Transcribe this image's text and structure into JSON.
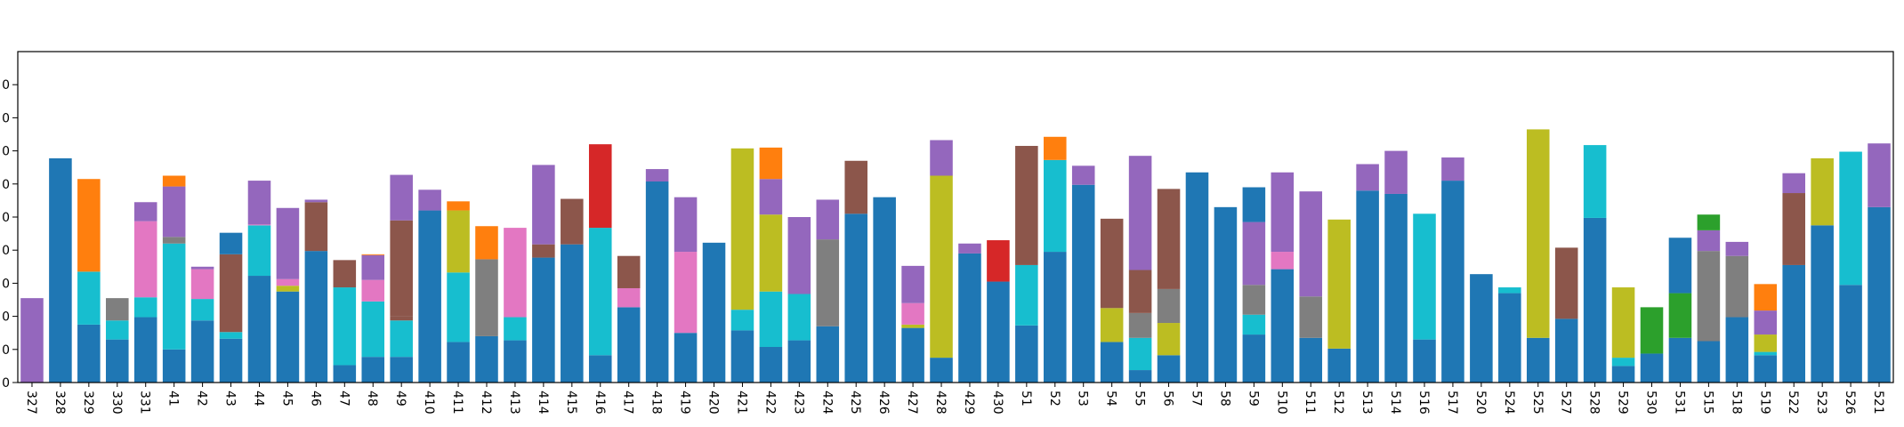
{
  "chart_data": {
    "type": "bar",
    "stacked": true,
    "ylim": [
      0,
      40
    ],
    "ytick_labels": [
      "0",
      "0",
      "0",
      "0",
      "0",
      "0",
      "0",
      "0",
      "0",
      "0"
    ],
    "ytick_values": [
      0,
      4,
      8,
      12,
      16,
      20,
      24,
      28,
      32,
      36
    ],
    "colors": {
      "blue": "#1f77b4",
      "orange": "#ff7f0e",
      "green": "#2ca02c",
      "red": "#d62728",
      "purple": "#9467bd",
      "brown": "#8c564b",
      "pink": "#e377c2",
      "gray": "#7f7f7f",
      "olive": "#bcbd22",
      "cyan": "#17becf"
    },
    "bars": [
      {
        "label": "327",
        "segments": [
          [
            "purple",
            10.2
          ]
        ]
      },
      {
        "label": "328",
        "segments": [
          [
            "blue",
            27.1
          ]
        ]
      },
      {
        "label": "329",
        "segments": [
          [
            "blue",
            7.0
          ],
          [
            "cyan",
            6.4
          ],
          [
            "orange",
            11.2
          ]
        ]
      },
      {
        "label": "330",
        "segments": [
          [
            "blue",
            5.2
          ],
          [
            "cyan",
            2.3
          ],
          [
            "gray",
            2.7
          ]
        ]
      },
      {
        "label": "331",
        "segments": [
          [
            "blue",
            7.9
          ],
          [
            "cyan",
            2.4
          ],
          [
            "pink",
            9.2
          ],
          [
            "purple",
            2.3
          ]
        ]
      },
      {
        "label": "41",
        "segments": [
          [
            "blue",
            4.0
          ],
          [
            "cyan",
            12.8
          ],
          [
            "gray",
            0.8
          ],
          [
            "purple",
            6.1
          ],
          [
            "orange",
            1.3
          ]
        ]
      },
      {
        "label": "42",
        "segments": [
          [
            "blue",
            7.5
          ],
          [
            "cyan",
            2.6
          ],
          [
            "pink",
            3.6
          ],
          [
            "purple",
            0.3
          ]
        ]
      },
      {
        "label": "43",
        "segments": [
          [
            "blue",
            5.3
          ],
          [
            "cyan",
            0.8
          ],
          [
            "brown",
            9.4
          ],
          [
            "blue",
            2.6
          ]
        ]
      },
      {
        "label": "44",
        "segments": [
          [
            "blue",
            12.9
          ],
          [
            "cyan",
            6.1
          ],
          [
            "pink",
            0.1
          ],
          [
            "purple",
            5.3
          ]
        ]
      },
      {
        "label": "45",
        "segments": [
          [
            "blue",
            11.0
          ],
          [
            "olive",
            0.7
          ],
          [
            "pink",
            0.8
          ],
          [
            "purple",
            8.6
          ]
        ]
      },
      {
        "label": "46",
        "segments": [
          [
            "blue",
            15.9
          ],
          [
            "brown",
            5.9
          ],
          [
            "purple",
            0.3
          ]
        ]
      },
      {
        "label": "47",
        "segments": [
          [
            "blue",
            2.1
          ],
          [
            "cyan",
            9.4
          ],
          [
            "brown",
            3.3
          ]
        ]
      },
      {
        "label": "48",
        "segments": [
          [
            "blue",
            3.1
          ],
          [
            "cyan",
            6.7
          ],
          [
            "pink",
            2.6
          ],
          [
            "purple",
            3.0
          ],
          [
            "orange",
            0.1
          ]
        ]
      },
      {
        "label": "49",
        "segments": [
          [
            "blue",
            3.1
          ],
          [
            "cyan",
            4.4
          ],
          [
            "brown",
            0.5
          ],
          [
            "brown",
            11.6
          ],
          [
            "purple",
            5.5
          ]
        ]
      },
      {
        "label": "410",
        "segments": [
          [
            "blue",
            20.8
          ],
          [
            "purple",
            2.5
          ]
        ]
      },
      {
        "label": "411",
        "segments": [
          [
            "blue",
            4.9
          ],
          [
            "cyan",
            8.4
          ],
          [
            "olive",
            7.5
          ],
          [
            "orange",
            1.1
          ]
        ]
      },
      {
        "label": "412",
        "segments": [
          [
            "blue",
            5.6
          ],
          [
            "gray",
            9.3
          ],
          [
            "orange",
            4.0
          ]
        ]
      },
      {
        "label": "413",
        "segments": [
          [
            "blue",
            5.1
          ],
          [
            "cyan",
            2.8
          ],
          [
            "pink",
            10.8
          ]
        ]
      },
      {
        "label": "414",
        "segments": [
          [
            "blue",
            15.1
          ],
          [
            "brown",
            1.6
          ],
          [
            "purple",
            9.6
          ]
        ]
      },
      {
        "label": "415",
        "segments": [
          [
            "blue",
            16.7
          ],
          [
            "brown",
            5.5
          ]
        ]
      },
      {
        "label": "416",
        "segments": [
          [
            "blue",
            3.3
          ],
          [
            "cyan",
            15.4
          ],
          [
            "red",
            10.1
          ]
        ]
      },
      {
        "label": "417",
        "segments": [
          [
            "blue",
            9.1
          ],
          [
            "pink",
            2.3
          ],
          [
            "brown",
            3.9
          ]
        ]
      },
      {
        "label": "418",
        "segments": [
          [
            "blue",
            24.3
          ],
          [
            "purple",
            1.5
          ]
        ]
      },
      {
        "label": "419",
        "segments": [
          [
            "blue",
            6.0
          ],
          [
            "pink",
            9.8
          ],
          [
            "purple",
            6.6
          ]
        ]
      },
      {
        "label": "420",
        "segments": [
          [
            "blue",
            16.9
          ]
        ]
      },
      {
        "label": "421",
        "segments": [
          [
            "blue",
            6.3
          ],
          [
            "cyan",
            2.5
          ],
          [
            "olive",
            19.5
          ]
        ]
      },
      {
        "label": "422",
        "segments": [
          [
            "blue",
            4.3
          ],
          [
            "cyan",
            6.7
          ],
          [
            "olive",
            9.3
          ],
          [
            "purple",
            4.3
          ],
          [
            "orange",
            3.8
          ]
        ]
      },
      {
        "label": "423",
        "segments": [
          [
            "blue",
            5.1
          ],
          [
            "cyan",
            5.6
          ],
          [
            "purple",
            9.3
          ]
        ]
      },
      {
        "label": "424",
        "segments": [
          [
            "blue",
            6.8
          ],
          [
            "gray",
            10.5
          ],
          [
            "purple",
            4.8
          ]
        ]
      },
      {
        "label": "425",
        "segments": [
          [
            "blue",
            20.4
          ],
          [
            "brown",
            6.4
          ]
        ]
      },
      {
        "label": "426",
        "segments": [
          [
            "blue",
            22.4
          ]
        ]
      },
      {
        "label": "427",
        "segments": [
          [
            "blue",
            6.6
          ],
          [
            "olive",
            0.4
          ],
          [
            "pink",
            2.6
          ],
          [
            "purple",
            4.5
          ]
        ]
      },
      {
        "label": "428",
        "segments": [
          [
            "blue",
            3.0
          ],
          [
            "olive",
            22.0
          ],
          [
            "purple",
            4.3
          ]
        ]
      },
      {
        "label": "429",
        "segments": [
          [
            "blue",
            15.6
          ],
          [
            "purple",
            1.2
          ]
        ]
      },
      {
        "label": "430",
        "segments": [
          [
            "blue",
            12.2
          ],
          [
            "red",
            5.0
          ]
        ]
      },
      {
        "label": "51",
        "segments": [
          [
            "blue",
            6.9
          ],
          [
            "cyan",
            7.3
          ],
          [
            "brown",
            14.4
          ]
        ]
      },
      {
        "label": "52",
        "segments": [
          [
            "blue",
            15.8
          ],
          [
            "cyan",
            11.1
          ],
          [
            "orange",
            2.8
          ]
        ]
      },
      {
        "label": "53",
        "segments": [
          [
            "blue",
            23.9
          ],
          [
            "purple",
            2.3
          ]
        ]
      },
      {
        "label": "54",
        "segments": [
          [
            "blue",
            4.9
          ],
          [
            "olive",
            4.1
          ],
          [
            "brown",
            10.8
          ]
        ]
      },
      {
        "label": "55",
        "segments": [
          [
            "blue",
            1.5
          ],
          [
            "cyan",
            3.9
          ],
          [
            "gray",
            3.0
          ],
          [
            "brown",
            5.2
          ],
          [
            "purple",
            13.8
          ]
        ]
      },
      {
        "label": "56",
        "segments": [
          [
            "blue",
            3.3
          ],
          [
            "olive",
            3.9
          ],
          [
            "gray",
            4.1
          ],
          [
            "brown",
            12.1
          ]
        ]
      },
      {
        "label": "57",
        "segments": [
          [
            "blue",
            25.4
          ]
        ]
      },
      {
        "label": "58",
        "segments": [
          [
            "blue",
            21.2
          ]
        ]
      },
      {
        "label": "59",
        "segments": [
          [
            "blue",
            5.8
          ],
          [
            "cyan",
            2.4
          ],
          [
            "gray",
            3.6
          ],
          [
            "purple",
            7.6
          ],
          [
            "blue",
            4.2
          ]
        ]
      },
      {
        "label": "510",
        "segments": [
          [
            "blue",
            13.7
          ],
          [
            "pink",
            2.1
          ],
          [
            "purple",
            9.6
          ]
        ]
      },
      {
        "label": "511",
        "segments": [
          [
            "blue",
            5.4
          ],
          [
            "gray",
            5.0
          ],
          [
            "purple",
            12.7
          ]
        ]
      },
      {
        "label": "512",
        "segments": [
          [
            "blue",
            4.1
          ],
          [
            "olive",
            15.6
          ]
        ]
      },
      {
        "label": "513",
        "segments": [
          [
            "blue",
            23.2
          ],
          [
            "purple",
            3.2
          ]
        ]
      },
      {
        "label": "514",
        "segments": [
          [
            "blue",
            22.8
          ],
          [
            "purple",
            5.2
          ]
        ]
      },
      {
        "label": "516",
        "segments": [
          [
            "blue",
            5.2
          ],
          [
            "cyan",
            15.2
          ]
        ]
      },
      {
        "label": "517",
        "segments": [
          [
            "blue",
            24.4
          ],
          [
            "purple",
            2.8
          ]
        ]
      },
      {
        "label": "520",
        "segments": [
          [
            "blue",
            13.1
          ]
        ]
      },
      {
        "label": "524",
        "segments": [
          [
            "blue",
            10.8
          ],
          [
            "cyan",
            0.7
          ]
        ]
      },
      {
        "label": "525",
        "segments": [
          [
            "blue",
            5.4
          ],
          [
            "olive",
            25.2
          ]
        ]
      },
      {
        "label": "527",
        "segments": [
          [
            "blue",
            7.7
          ],
          [
            "brown",
            8.6
          ]
        ]
      },
      {
        "label": "528",
        "segments": [
          [
            "blue",
            19.9
          ],
          [
            "cyan",
            8.8
          ]
        ]
      },
      {
        "label": "529",
        "segments": [
          [
            "blue",
            2.0
          ],
          [
            "cyan",
            1.0
          ],
          [
            "olive",
            8.5
          ]
        ]
      },
      {
        "label": "530",
        "segments": [
          [
            "blue",
            3.5
          ],
          [
            "green",
            5.6
          ]
        ]
      },
      {
        "label": "531",
        "segments": [
          [
            "blue",
            5.4
          ],
          [
            "green",
            5.4
          ],
          [
            "blue",
            6.7
          ]
        ]
      },
      {
        "label": "515",
        "segments": [
          [
            "blue",
            5.0
          ],
          [
            "gray",
            10.9
          ],
          [
            "purple",
            2.5
          ],
          [
            "green",
            1.9
          ]
        ]
      },
      {
        "label": "518",
        "segments": [
          [
            "blue",
            7.9
          ],
          [
            "gray",
            7.4
          ],
          [
            "purple",
            1.7
          ]
        ]
      },
      {
        "label": "519",
        "segments": [
          [
            "blue",
            3.3
          ],
          [
            "cyan",
            0.4
          ],
          [
            "olive",
            2.1
          ],
          [
            "purple",
            2.9
          ],
          [
            "orange",
            3.2
          ]
        ]
      },
      {
        "label": "522",
        "segments": [
          [
            "blue",
            14.2
          ],
          [
            "brown",
            8.7
          ],
          [
            "purple",
            2.4
          ]
        ]
      },
      {
        "label": "523",
        "segments": [
          [
            "blue",
            19.0
          ],
          [
            "olive",
            8.1
          ]
        ]
      },
      {
        "label": "526",
        "segments": [
          [
            "blue",
            11.8
          ],
          [
            "cyan",
            16.1
          ]
        ]
      },
      {
        "label": "521",
        "segments": [
          [
            "blue",
            21.2
          ],
          [
            "purple",
            7.7
          ]
        ]
      }
    ]
  }
}
